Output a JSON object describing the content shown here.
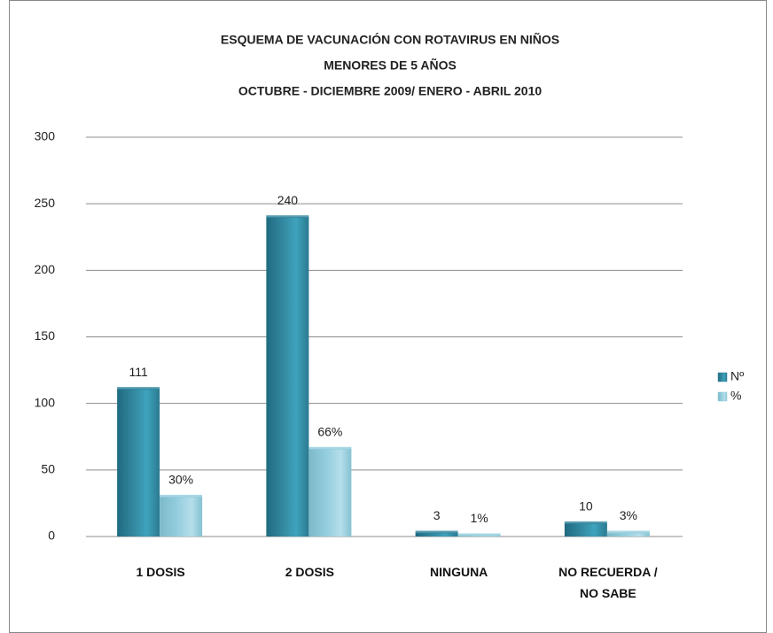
{
  "chart_data": {
    "type": "bar",
    "title": [
      "ESQUEMA DE VACUNACIÓN CON ROTAVIRUS  EN NIÑOS",
      "MENORES DE 5 AÑOS",
      "OCTUBRE - DICIEMBRE 2009/ ENERO - ABRIL 2010"
    ],
    "categories": [
      "1 DOSIS",
      "2 DOSIS",
      "NINGUNA",
      "NO RECUERDA / NO SABE"
    ],
    "series": [
      {
        "name": "Nº",
        "color": "#31859c",
        "values": [
          111,
          240,
          3,
          10
        ]
      },
      {
        "name": "%",
        "color": "#93cddd",
        "values": [
          30,
          66,
          1,
          3
        ],
        "value_labels": [
          "30%",
          "66%",
          "1%",
          "3%"
        ]
      }
    ],
    "ylim": [
      0,
      300
    ],
    "yticks": [
      0,
      50,
      100,
      150,
      200,
      250,
      300
    ],
    "grid": true,
    "legend": "right"
  }
}
